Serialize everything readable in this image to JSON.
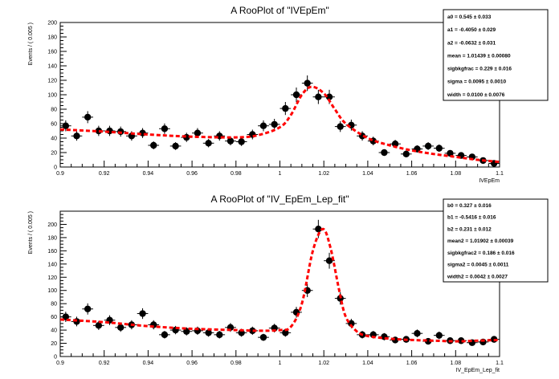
{
  "chart_data": [
    {
      "type": "scatter",
      "title": "A RooPlot of \"IVEpEm\"",
      "xlabel": "IVEpEm",
      "ylabel": "Events / ( 0.005 )",
      "xlim": [
        0.9,
        1.1
      ],
      "ylim": [
        0,
        200
      ],
      "xticks": [
        "0.9",
        "0.92",
        "0.94",
        "0.96",
        "0.98",
        "1",
        "1.02",
        "1.04",
        "1.06",
        "1.08",
        "1.1"
      ],
      "yticks": [
        "0",
        "20",
        "40",
        "60",
        "80",
        "100",
        "120",
        "140",
        "160",
        "180",
        "200"
      ],
      "grid": false,
      "series": [
        {
          "kind": "points-with-errors",
          "color": "#000000",
          "x": [
            0.9025,
            0.9075,
            0.9125,
            0.9175,
            0.9225,
            0.9275,
            0.9325,
            0.9375,
            0.9425,
            0.9475,
            0.9525,
            0.9575,
            0.9625,
            0.9675,
            0.9725,
            0.9775,
            0.9825,
            0.9875,
            0.9925,
            0.9975,
            1.0025,
            1.0075,
            1.0125,
            1.0175,
            1.0225,
            1.0275,
            1.0325,
            1.0375,
            1.0425,
            1.0475,
            1.0525,
            1.0575,
            1.0625,
            1.0675,
            1.0725,
            1.0775,
            1.0825,
            1.0875,
            1.0925,
            1.0975
          ],
          "y": [
            57,
            43,
            69,
            50,
            50,
            49,
            43,
            47,
            30,
            53,
            29,
            41,
            47,
            33,
            43,
            36,
            35,
            45,
            57,
            59,
            81,
            100,
            116,
            97,
            97,
            56,
            58,
            43,
            36,
            20,
            32,
            18,
            25,
            29,
            26,
            19,
            16,
            14,
            9,
            5
          ]
        },
        {
          "kind": "fit-curve",
          "color": "#ff0000",
          "x": [
            0.9,
            0.92,
            0.94,
            0.96,
            0.98,
            0.99,
            1.0,
            1.005,
            1.01,
            1.0144,
            1.02,
            1.025,
            1.03,
            1.04,
            1.05,
            1.06,
            1.07,
            1.08,
            1.09,
            1.1
          ],
          "y": [
            52,
            49,
            45,
            42,
            41,
            44,
            55,
            72,
            100,
            111,
            102,
            80,
            60,
            40,
            30,
            23,
            18,
            14,
            10,
            7
          ]
        }
      ],
      "stats": [
        {
          "label": "a0 =",
          "value": "0.545",
          "error": "0.033"
        },
        {
          "label": "a1 =",
          "value": "-0.4050",
          "error": "0.029"
        },
        {
          "label": "a2 =",
          "value": "-0.0632",
          "error": "0.031"
        },
        {
          "label": "mean =",
          "value": "1.01439",
          "error": "0.00080"
        },
        {
          "label": "sigbkgfrac =",
          "value": "0.229",
          "error": "0.016"
        },
        {
          "label": "sigma =",
          "value": "0.0095",
          "error": "0.0010"
        },
        {
          "label": "width =",
          "value": "0.0100",
          "error": "0.0076"
        }
      ]
    },
    {
      "type": "scatter",
      "title": "A RooPlot of \"IV_EpEm_Lep_fit\"",
      "xlabel": "IV_EpEm_Lep_fit",
      "ylabel": "Events / ( 0.005 )",
      "xlim": [
        0.9,
        1.1
      ],
      "ylim": [
        0,
        220
      ],
      "xticks": [
        "0.9",
        "0.92",
        "0.94",
        "0.96",
        "0.98",
        "1",
        "1.02",
        "1.04",
        "1.06",
        "1.08",
        "1.1"
      ],
      "yticks": [
        "0",
        "20",
        "40",
        "60",
        "80",
        "100",
        "120",
        "140",
        "160",
        "180",
        "200"
      ],
      "grid": false,
      "series": [
        {
          "kind": "points-with-errors",
          "color": "#000000",
          "x": [
            0.9025,
            0.9075,
            0.9125,
            0.9175,
            0.9225,
            0.9275,
            0.9325,
            0.9375,
            0.9425,
            0.9475,
            0.9525,
            0.9575,
            0.9625,
            0.9675,
            0.9725,
            0.9775,
            0.9825,
            0.9875,
            0.9925,
            0.9975,
            1.0025,
            1.0075,
            1.0125,
            1.0175,
            1.0225,
            1.0275,
            1.0325,
            1.0375,
            1.0425,
            1.0475,
            1.0525,
            1.0575,
            1.0625,
            1.0675,
            1.0725,
            1.0775,
            1.0825,
            1.0875,
            1.0925,
            1.0975
          ],
          "y": [
            60,
            53,
            72,
            47,
            55,
            44,
            48,
            65,
            48,
            33,
            40,
            38,
            39,
            36,
            33,
            44,
            36,
            39,
            29,
            43,
            36,
            67,
            100,
            193,
            145,
            88,
            50,
            33,
            33,
            30,
            25,
            26,
            35,
            23,
            32,
            24,
            24,
            21,
            22,
            26
          ]
        },
        {
          "kind": "fit-curve",
          "color": "#ff0000",
          "x": [
            0.9,
            0.92,
            0.94,
            0.96,
            0.98,
            0.99,
            1.0,
            1.005,
            1.01,
            1.015,
            1.0195,
            1.023,
            1.027,
            1.03,
            1.035,
            1.04,
            1.05,
            1.06,
            1.07,
            1.08,
            1.09,
            1.1
          ],
          "y": [
            56,
            52,
            46,
            42,
            40,
            39,
            40,
            45,
            80,
            160,
            193,
            165,
            100,
            60,
            38,
            31,
            27,
            25,
            24,
            23,
            24,
            25
          ]
        }
      ],
      "stats": [
        {
          "label": "b0 =",
          "value": "0.327",
          "error": "0.016"
        },
        {
          "label": "b1 =",
          "value": "-0.5416",
          "error": "0.016"
        },
        {
          "label": "b2 =",
          "value": "0.231",
          "error": "0.012"
        },
        {
          "label": "mean2 =",
          "value": "1.01902",
          "error": "0.00039"
        },
        {
          "label": "sigbkgfrac2 =",
          "value": "0.186",
          "error": "0.016"
        },
        {
          "label": "sigma2 =",
          "value": "0.0045",
          "error": "0.0011"
        },
        {
          "label": "width2 =",
          "value": "0.0042",
          "error": "0.0027"
        }
      ]
    }
  ]
}
